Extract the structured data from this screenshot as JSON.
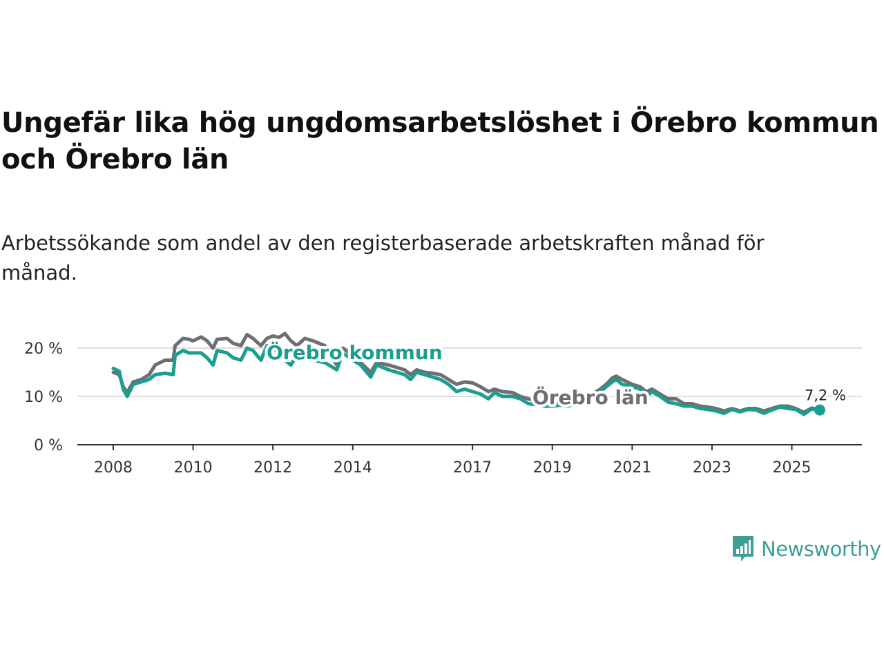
{
  "title": "Ungefär lika hög ungdomsarbetslöshet i Örebro kommun och Örebro län",
  "subtitle": "Arbetssökande som andel av den registerbaserade arbetskraften månad för månad.",
  "brand": "Newsworthy",
  "colors": {
    "kommun": "#1a9e8f",
    "lan": "#6e6e73",
    "grid": "#dddddd",
    "axis": "#333333",
    "brand": "#3d9e98"
  },
  "chart_data": {
    "type": "line",
    "title": "Ungefär lika hög ungdomsarbetslöshet i Örebro kommun och Örebro län",
    "xlabel": "",
    "ylabel": "",
    "xlim": [
      2008.0,
      2026.4
    ],
    "ylim": [
      0,
      20
    ],
    "x_ticks": [
      {
        "value": 2008,
        "label": "2008"
      },
      {
        "value": 2010,
        "label": "2010"
      },
      {
        "value": 2012,
        "label": "2012"
      },
      {
        "value": 2014,
        "label": "2014"
      },
      {
        "value": 2017,
        "label": "2017"
      },
      {
        "value": 2019,
        "label": "2019"
      },
      {
        "value": 2021,
        "label": "2021"
      },
      {
        "value": 2023,
        "label": "2023"
      },
      {
        "value": 2025,
        "label": "2025"
      }
    ],
    "y_ticks": [
      {
        "value": 0,
        "label": "0 %"
      },
      {
        "value": 10,
        "label": "10 %"
      },
      {
        "value": 20,
        "label": "20 %"
      }
    ],
    "end_label": "7,2 %",
    "series": [
      {
        "name": "Örebro län",
        "label": "Örebro län",
        "color_key": "lan",
        "points": [
          [
            2008.0,
            15.0
          ],
          [
            2008.15,
            14.5
          ],
          [
            2008.25,
            12.0
          ],
          [
            2008.35,
            10.8
          ],
          [
            2008.5,
            13.0
          ],
          [
            2008.7,
            13.5
          ],
          [
            2008.9,
            14.5
          ],
          [
            2009.05,
            16.5
          ],
          [
            2009.3,
            17.5
          ],
          [
            2009.5,
            17.5
          ],
          [
            2009.55,
            20.5
          ],
          [
            2009.75,
            22.0
          ],
          [
            2009.9,
            21.8
          ],
          [
            2010.0,
            21.5
          ],
          [
            2010.2,
            22.3
          ],
          [
            2010.35,
            21.5
          ],
          [
            2010.5,
            20.0
          ],
          [
            2010.6,
            21.8
          ],
          [
            2010.85,
            22.0
          ],
          [
            2011.0,
            21.0
          ],
          [
            2011.2,
            20.5
          ],
          [
            2011.35,
            22.8
          ],
          [
            2011.5,
            22.0
          ],
          [
            2011.7,
            20.5
          ],
          [
            2011.85,
            22.0
          ],
          [
            2012.0,
            22.5
          ],
          [
            2012.15,
            22.2
          ],
          [
            2012.3,
            23.0
          ],
          [
            2012.45,
            21.5
          ],
          [
            2012.6,
            20.5
          ],
          [
            2012.8,
            22.0
          ],
          [
            2013.0,
            21.5
          ],
          [
            2013.3,
            20.5
          ],
          [
            2013.6,
            16.5
          ],
          [
            2013.75,
            20.0
          ],
          [
            2014.0,
            18.5
          ],
          [
            2014.2,
            17.0
          ],
          [
            2014.45,
            15.0
          ],
          [
            2014.6,
            17.0
          ],
          [
            2014.9,
            16.5
          ],
          [
            2015.1,
            16.0
          ],
          [
            2015.3,
            15.5
          ],
          [
            2015.45,
            14.5
          ],
          [
            2015.6,
            15.5
          ],
          [
            2015.8,
            15.0
          ],
          [
            2016.0,
            14.8
          ],
          [
            2016.2,
            14.5
          ],
          [
            2016.4,
            13.5
          ],
          [
            2016.6,
            12.5
          ],
          [
            2016.8,
            13.0
          ],
          [
            2017.0,
            12.8
          ],
          [
            2017.2,
            12.0
          ],
          [
            2017.4,
            11.0
          ],
          [
            2017.55,
            11.5
          ],
          [
            2017.75,
            11.0
          ],
          [
            2018.0,
            10.8
          ],
          [
            2018.2,
            10.0
          ],
          [
            2018.4,
            9.5
          ],
          [
            2018.6,
            9.0
          ],
          [
            2018.8,
            8.7
          ],
          [
            2019.0,
            8.5
          ],
          [
            2019.2,
            8.6
          ],
          [
            2019.4,
            8.7
          ],
          [
            2019.6,
            9.0
          ],
          [
            2019.8,
            10.0
          ],
          [
            2020.0,
            10.5
          ],
          [
            2020.2,
            11.5
          ],
          [
            2020.35,
            12.5
          ],
          [
            2020.5,
            13.8
          ],
          [
            2020.6,
            14.2
          ],
          [
            2020.75,
            13.5
          ],
          [
            2021.0,
            12.5
          ],
          [
            2021.2,
            12.0
          ],
          [
            2021.35,
            11.0
          ],
          [
            2021.5,
            11.5
          ],
          [
            2021.7,
            10.5
          ],
          [
            2021.9,
            9.5
          ],
          [
            2022.1,
            9.5
          ],
          [
            2022.3,
            8.5
          ],
          [
            2022.5,
            8.5
          ],
          [
            2022.7,
            8.0
          ],
          [
            2022.9,
            7.8
          ],
          [
            2023.1,
            7.5
          ],
          [
            2023.3,
            7.0
          ],
          [
            2023.5,
            7.5
          ],
          [
            2023.7,
            7.0
          ],
          [
            2023.9,
            7.5
          ],
          [
            2024.1,
            7.5
          ],
          [
            2024.3,
            7.0
          ],
          [
            2024.5,
            7.5
          ],
          [
            2024.7,
            8.0
          ],
          [
            2024.9,
            8.0
          ],
          [
            2025.1,
            7.5
          ],
          [
            2025.3,
            6.7
          ],
          [
            2025.5,
            7.6
          ],
          [
            2025.7,
            7.2
          ]
        ]
      },
      {
        "name": "Örebro kommun",
        "label": "Örebro kommun",
        "color_key": "kommun",
        "points": [
          [
            2008.0,
            15.8
          ],
          [
            2008.15,
            15.2
          ],
          [
            2008.25,
            11.5
          ],
          [
            2008.35,
            10.0
          ],
          [
            2008.5,
            12.5
          ],
          [
            2008.7,
            13.0
          ],
          [
            2008.9,
            13.5
          ],
          [
            2009.05,
            14.5
          ],
          [
            2009.3,
            14.8
          ],
          [
            2009.5,
            14.5
          ],
          [
            2009.55,
            18.5
          ],
          [
            2009.75,
            19.5
          ],
          [
            2009.9,
            19.0
          ],
          [
            2010.0,
            19.0
          ],
          [
            2010.2,
            19.0
          ],
          [
            2010.35,
            18.0
          ],
          [
            2010.5,
            16.5
          ],
          [
            2010.6,
            19.5
          ],
          [
            2010.85,
            19.0
          ],
          [
            2011.0,
            18.0
          ],
          [
            2011.2,
            17.5
          ],
          [
            2011.35,
            20.0
          ],
          [
            2011.5,
            19.5
          ],
          [
            2011.7,
            17.5
          ],
          [
            2011.85,
            20.5
          ],
          [
            2012.0,
            20.0
          ],
          [
            2012.15,
            19.0
          ],
          [
            2012.3,
            17.5
          ],
          [
            2012.45,
            16.5
          ],
          [
            2012.6,
            18.5
          ],
          [
            2012.8,
            18.0
          ],
          [
            2013.0,
            17.5
          ],
          [
            2013.3,
            17.0
          ],
          [
            2013.6,
            15.5
          ],
          [
            2013.75,
            19.0
          ],
          [
            2014.0,
            17.5
          ],
          [
            2014.2,
            16.5
          ],
          [
            2014.45,
            14.0
          ],
          [
            2014.6,
            16.5
          ],
          [
            2014.9,
            15.5
          ],
          [
            2015.1,
            15.0
          ],
          [
            2015.3,
            14.5
          ],
          [
            2015.45,
            13.5
          ],
          [
            2015.6,
            15.0
          ],
          [
            2015.8,
            14.5
          ],
          [
            2016.0,
            14.0
          ],
          [
            2016.2,
            13.5
          ],
          [
            2016.4,
            12.5
          ],
          [
            2016.6,
            11.0
          ],
          [
            2016.8,
            11.5
          ],
          [
            2017.0,
            11.0
          ],
          [
            2017.2,
            10.5
          ],
          [
            2017.4,
            9.5
          ],
          [
            2017.55,
            10.8
          ],
          [
            2017.75,
            10.0
          ],
          [
            2018.0,
            10.0
          ],
          [
            2018.2,
            9.5
          ],
          [
            2018.4,
            8.5
          ],
          [
            2018.6,
            8.3
          ],
          [
            2018.8,
            8.0
          ],
          [
            2019.0,
            8.0
          ],
          [
            2019.2,
            8.2
          ],
          [
            2019.4,
            8.0
          ],
          [
            2019.6,
            8.7
          ],
          [
            2019.8,
            9.5
          ],
          [
            2020.0,
            10.0
          ],
          [
            2020.2,
            11.0
          ],
          [
            2020.35,
            12.0
          ],
          [
            2020.5,
            13.0
          ],
          [
            2020.6,
            13.5
          ],
          [
            2020.75,
            12.5
          ],
          [
            2021.0,
            12.0
          ],
          [
            2021.2,
            11.5
          ],
          [
            2021.35,
            10.0
          ],
          [
            2021.5,
            11.0
          ],
          [
            2021.7,
            10.0
          ],
          [
            2021.9,
            8.8
          ],
          [
            2022.1,
            8.5
          ],
          [
            2022.3,
            8.0
          ],
          [
            2022.5,
            8.0
          ],
          [
            2022.7,
            7.5
          ],
          [
            2022.9,
            7.3
          ],
          [
            2023.1,
            7.0
          ],
          [
            2023.3,
            6.5
          ],
          [
            2023.5,
            7.3
          ],
          [
            2023.7,
            6.8
          ],
          [
            2023.9,
            7.3
          ],
          [
            2024.1,
            7.2
          ],
          [
            2024.3,
            6.5
          ],
          [
            2024.5,
            7.2
          ],
          [
            2024.7,
            7.8
          ],
          [
            2024.9,
            7.5
          ],
          [
            2025.1,
            7.3
          ],
          [
            2025.3,
            6.3
          ],
          [
            2025.5,
            7.4
          ],
          [
            2025.7,
            7.2
          ]
        ]
      }
    ]
  }
}
